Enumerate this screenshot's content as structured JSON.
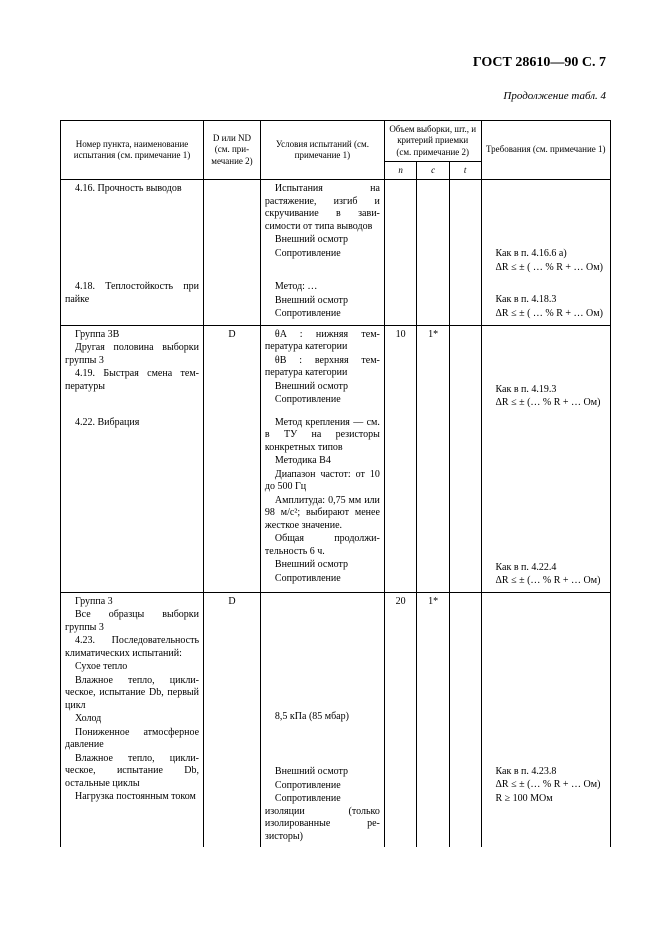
{
  "header": "ГОСТ 28610—90 С. 7",
  "caption": "Продолжение табл. 4",
  "columns": {
    "c1": "Номер пункта, наименование испытания (см. примечание 1)",
    "c2": "D или ND (см. при­мечание 2)",
    "c3": "Условия испытаний (см. примечание 1)",
    "c_group": "Объем выборки, шт., и критерий приемки (см. примечание 2)",
    "c4": "n",
    "c5": "c",
    "c6": "t",
    "c7": "Требования (см. примечание 1)"
  },
  "rows": [
    {
      "name": "4.16. Прочность выводов",
      "d": "",
      "cond": "Испытания на растяжение, изгиб и скручивание в зави­симости от типа вы­водов\nВнешний осмотр\nСопротивление",
      "n": "",
      "c": "",
      "t": "",
      "req": "Как в п. 4.16.6 а)\nΔR ≤ ± ( … % R + … Ом)"
    },
    {
      "name": "4.18. Теплостойкость при пайке",
      "d": "",
      "cond": "Метод: …\nВнешний осмотр\nСопротивление",
      "n": "",
      "c": "",
      "t": "",
      "req": "Как в п. 4.18.3\nΔR ≤ ± ( … % R + … Ом)"
    },
    {
      "sect": true,
      "name": "Группа 3B\nДругая половина выбор­ки группы 3\n4.19. Быстрая смена тем­пературы",
      "d": "D",
      "cond": "θA : нижняя тем­пература категории\nθB : верхняя тем­пература категории\nВнешний осмотр\nСопротивление",
      "n": "10",
      "c": "1*",
      "t": "",
      "req": "Как в п. 4.19.3\nΔR ≤ ± (… % R + … Ом)"
    },
    {
      "name": "4.22. Вибрация",
      "d": "",
      "cond": "Метод крепле­ния — см. в ТУ на ре­зисторы конкретных типов\nМетодика B4\nДиапазон частот: от 10 до 500 Гц\nАмплитуда: 0,75 мм или 98 м/с²; выбирают менее жесткое значение.\nОбщая продолжи­тельность 6 ч.\nВнешний осмотр\nСопротивление",
      "n": "",
      "c": "",
      "t": "",
      "req": "Как в п. 4.22.4\nΔR ≤ ± (… % R + … Ом)"
    },
    {
      "sect": true,
      "name": "Группа 3\nВсе образцы выборки группы 3\n4.23. Последовательность климатических испытаний:\nСухое тепло\nВлажное тепло, цикли­ческое, испытание Db, первый цикл\nХолод\nПониженное атмосферное давление\nВлажное тепло, цикли­ческое, испытание Db, остальные циклы\nНагрузка постоянным то­ком",
      "d": "D",
      "cond": "8,5 кПа (85 мбар)\n\nВнешний осмотр\nСопротивление\nСопротивление изоляции (только изолированные ре­зисторы)",
      "n": "20",
      "c": "1*",
      "t": "",
      "req": "Как в п. 4.23.8\nΔR ≤ ± (… % R + … Ом)\nR ≥ 100 МОм"
    }
  ]
}
